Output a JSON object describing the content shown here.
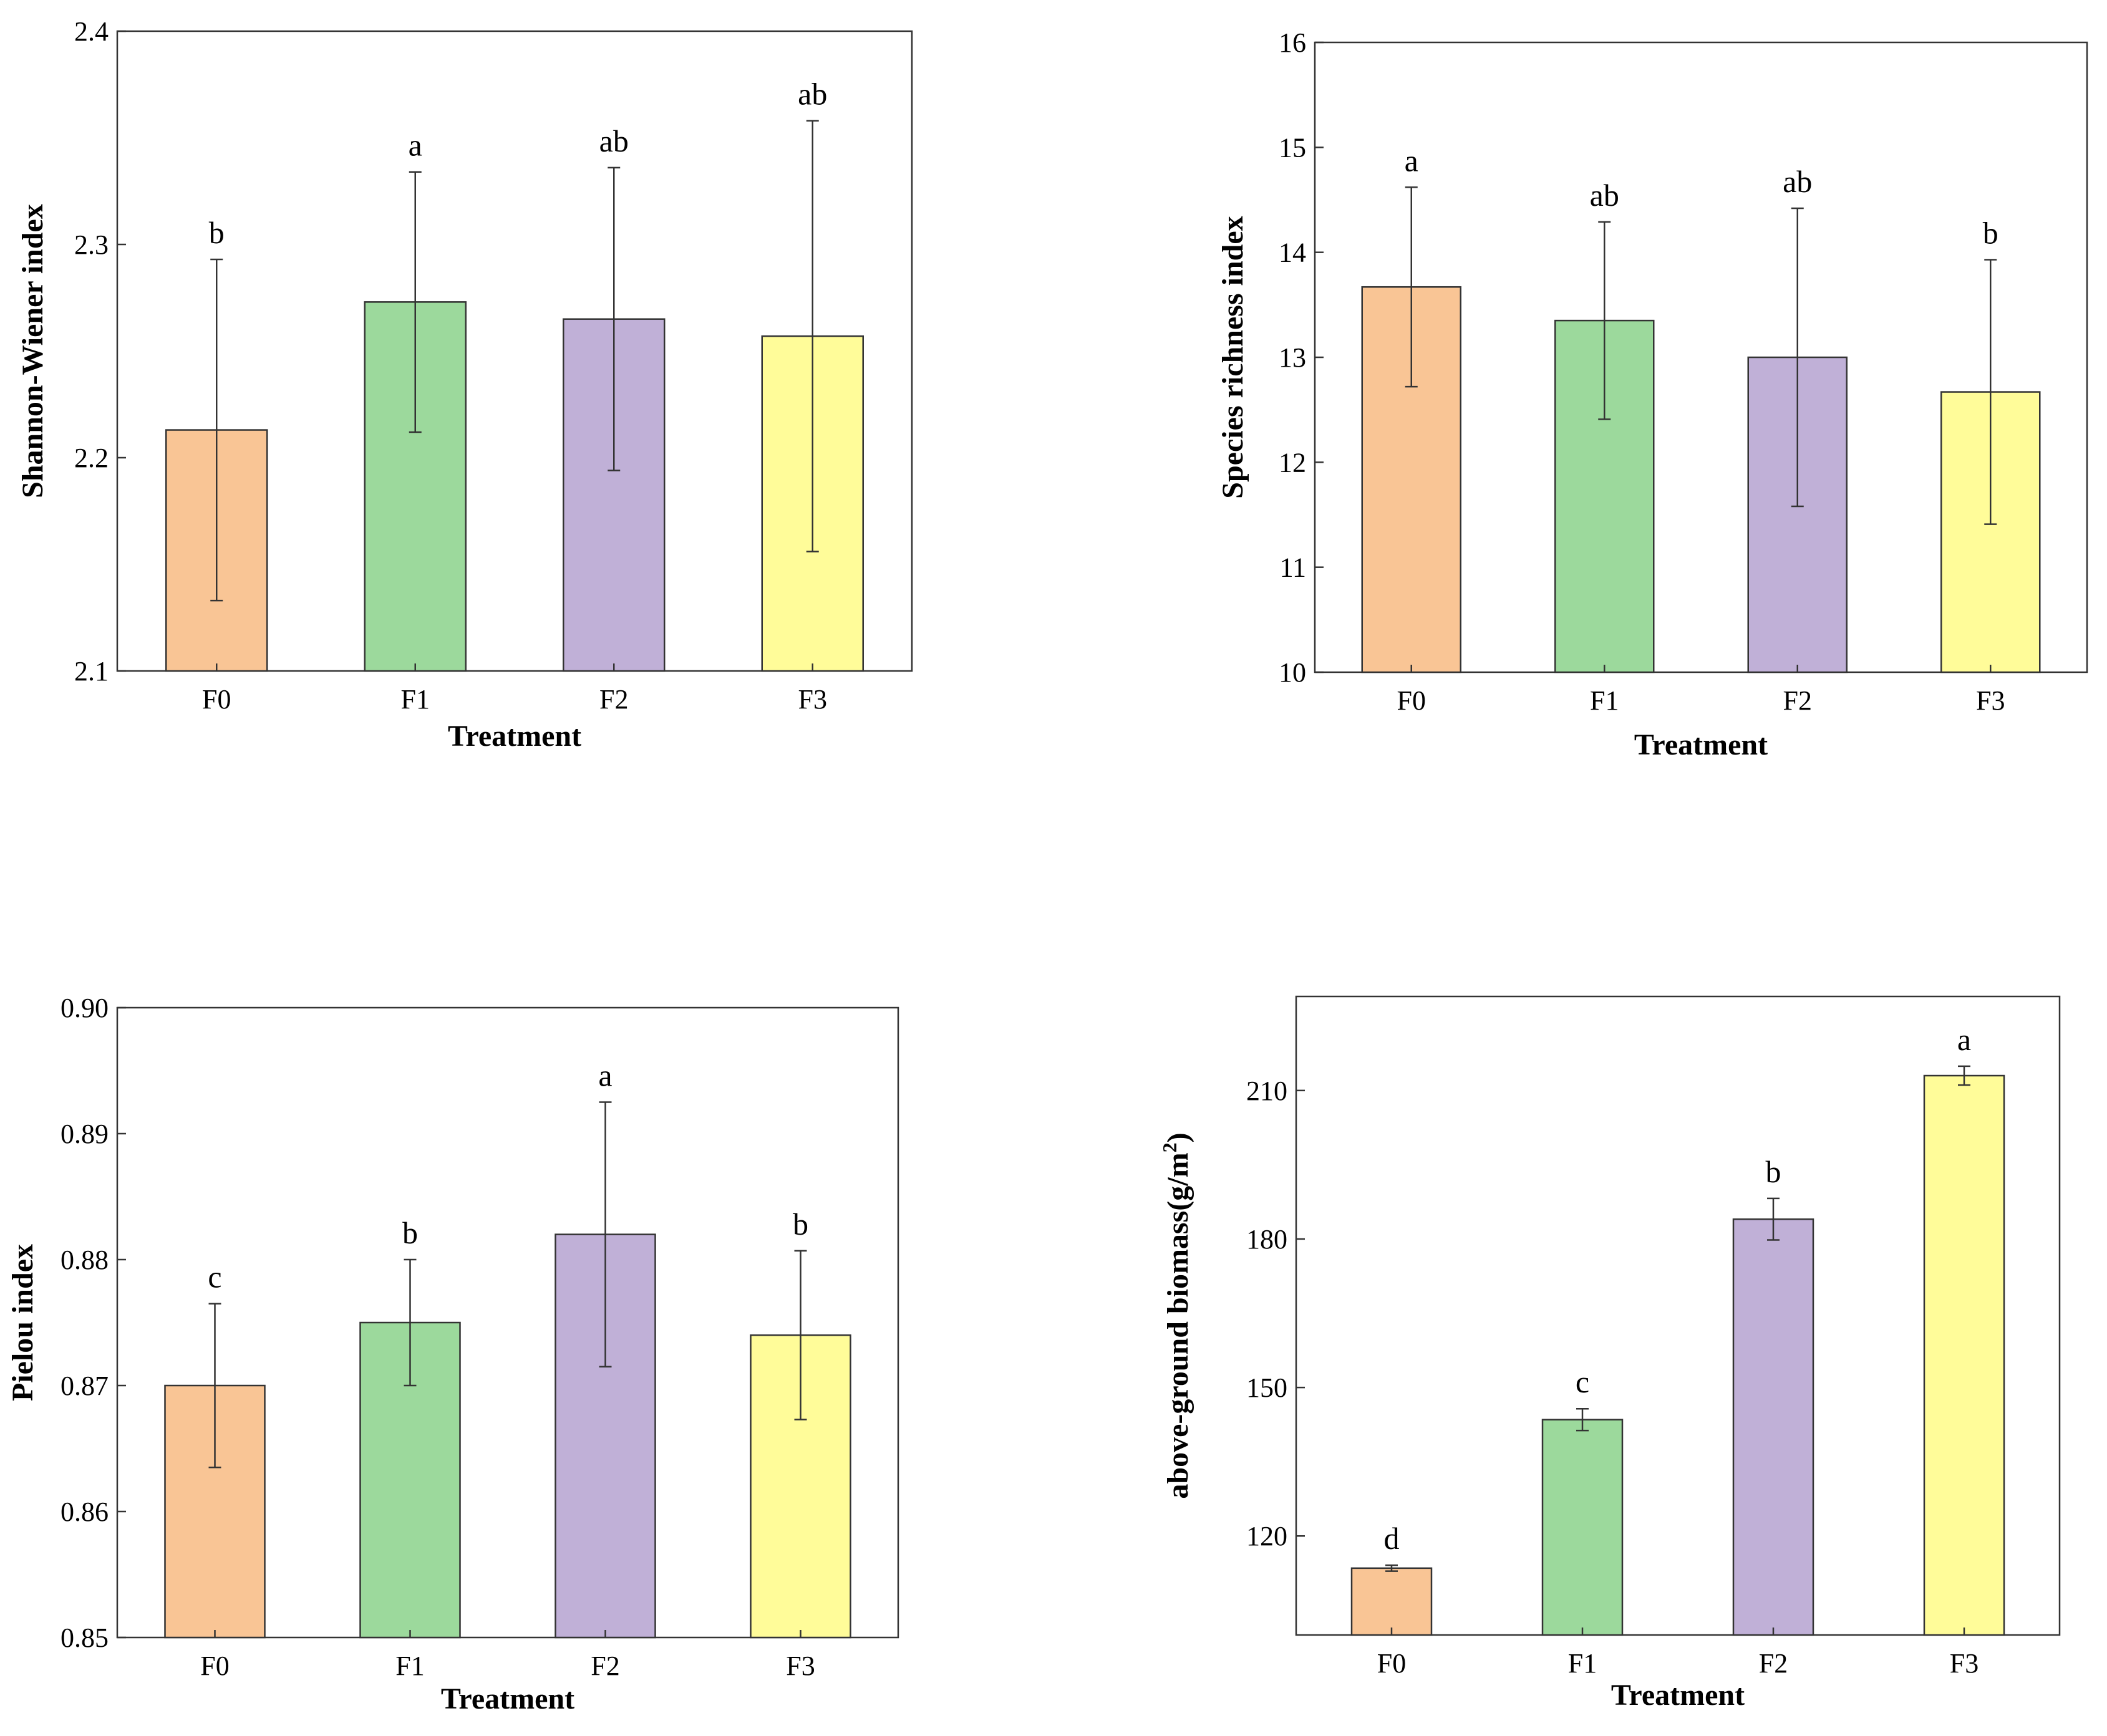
{
  "colors": {
    "F0": "#F9C595",
    "F1": "#9CD99C",
    "F2": "#C0B0D7",
    "F3": "#FFFC99",
    "axis": "#333333",
    "errorbar": "#333333"
  },
  "chart_data": [
    {
      "type": "bar",
      "panel": "top-left",
      "categories": [
        "F0",
        "F1",
        "F2",
        "F3"
      ],
      "values": [
        2.213,
        2.273,
        2.265,
        2.257
      ],
      "errors": [
        0.08,
        0.061,
        0.071,
        0.101
      ],
      "significance": [
        "b",
        "a",
        "ab",
        "ab"
      ],
      "xlabel": "Treatment",
      "ylabel": "Shannon-Wiener index",
      "ylim": [
        2.1,
        2.4
      ],
      "yticks": [
        2.1,
        2.2,
        2.3,
        2.4
      ],
      "ytick_labels": [
        "2.1",
        "2.2",
        "2.3",
        "2.4"
      ]
    },
    {
      "type": "bar",
      "panel": "top-right",
      "categories": [
        "F0",
        "F1",
        "F2",
        "F3"
      ],
      "values": [
        13.67,
        13.35,
        13.0,
        12.67
      ],
      "errors": [
        0.95,
        0.94,
        1.42,
        1.26
      ],
      "significance": [
        "a",
        "ab",
        "ab",
        "b"
      ],
      "xlabel": "Treatment",
      "ylabel": "Species richness index",
      "ylim": [
        10,
        16
      ],
      "yticks": [
        10,
        11,
        12,
        13,
        14,
        15,
        16
      ],
      "ytick_labels": [
        "10",
        "11",
        "12",
        "13",
        "14",
        "15",
        "16"
      ]
    },
    {
      "type": "bar",
      "panel": "bottom-left",
      "categories": [
        "F0",
        "F1",
        "F2",
        "F3"
      ],
      "values": [
        0.87,
        0.875,
        0.882,
        0.874
      ],
      "errors": [
        0.0065,
        0.005,
        0.0105,
        0.0067
      ],
      "significance": [
        "c",
        "b",
        "a",
        "b"
      ],
      "xlabel": "Treatment",
      "ylabel": "Pielou index",
      "ylim": [
        0.85,
        0.9
      ],
      "yticks": [
        0.85,
        0.86,
        0.87,
        0.88,
        0.89,
        0.9
      ],
      "ytick_labels": [
        "0.85",
        "0.86",
        "0.87",
        "0.88",
        "0.89",
        "0.90"
      ]
    },
    {
      "type": "bar",
      "panel": "bottom-right",
      "categories": [
        "F0",
        "F1",
        "F2",
        "F3"
      ],
      "values": [
        113.5,
        143.5,
        184,
        213
      ],
      "errors": [
        0.6,
        2.2,
        4.2,
        1.9
      ],
      "significance": [
        "d",
        "c",
        "b",
        "a"
      ],
      "xlabel": "Treatment",
      "ylabel": "above-ground biomass(g/m",
      "ylabel_superscript": "2",
      "ylabel_suffix": ")",
      "ylim": [
        100,
        229
      ],
      "yticks": [
        120,
        150,
        180,
        210
      ],
      "ytick_labels": [
        "120",
        "150",
        "180",
        "210"
      ]
    }
  ]
}
